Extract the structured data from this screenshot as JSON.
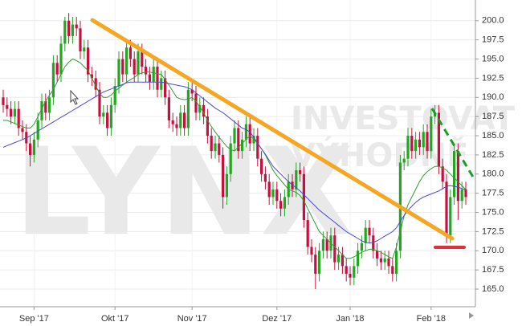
{
  "chart_data": {
    "type": "candlestick",
    "watermark": {
      "logo": "LYNX",
      "line1": "INVESTOVAT",
      "line2": "VÝHODNĚ"
    },
    "open": [
      190,
      189,
      188.5,
      187.5,
      188.5,
      186,
      185.5,
      184,
      182.5,
      184.5,
      187,
      189.5,
      188,
      190,
      194.5,
      193,
      197,
      200,
      198,
      199.5,
      199,
      196,
      196.5,
      193,
      192.5,
      191,
      187.5,
      188,
      186,
      189,
      191.5,
      195,
      193,
      196.5,
      195,
      193,
      196,
      194,
      193,
      192,
      194,
      191,
      192.5,
      190,
      187,
      186.5,
      186,
      188,
      186,
      191,
      190.5,
      188,
      189,
      187.5,
      185,
      183,
      184,
      182.5,
      177,
      180,
      184,
      186,
      183,
      184.5,
      186.5,
      184,
      185,
      182,
      180,
      179,
      177,
      178,
      176.5,
      175.5,
      177,
      179,
      178,
      180.5,
      180,
      174,
      170.5,
      169.5,
      167,
      170,
      171.5,
      170,
      172,
      168.5,
      169.5,
      168,
      167,
      166.5,
      168,
      170,
      171,
      173,
      172,
      170,
      169,
      168.5,
      169,
      168,
      167,
      170,
      181.5,
      182,
      185,
      183,
      184.5,
      183.5,
      185.5,
      183,
      187.5,
      188,
      181,
      179,
      172,
      177,
      183,
      176.5,
      178
    ],
    "high": [
      191,
      190,
      189.5,
      189.5,
      189.5,
      187,
      186.5,
      185,
      185.5,
      188,
      190.5,
      190.5,
      191,
      195.5,
      195.5,
      198,
      200.5,
      201,
      200.5,
      200.5,
      200,
      197.5,
      197.5,
      194,
      193.5,
      192,
      189,
      189,
      190,
      192.5,
      196,
      196,
      197.5,
      197.5,
      196,
      197,
      197,
      195,
      194,
      195,
      195,
      193.5,
      193.5,
      191,
      188,
      187.5,
      189,
      189,
      192,
      192,
      191.5,
      190,
      190,
      188.5,
      186,
      185,
      185,
      183.5,
      181,
      185,
      187,
      187,
      185.5,
      187.5,
      187.5,
      186,
      186,
      183,
      181,
      180,
      179,
      179,
      177.5,
      178,
      180,
      180,
      181.5,
      181.5,
      181,
      175,
      171.5,
      170.5,
      171,
      172.5,
      172.5,
      173,
      173,
      170.5,
      170.5,
      169,
      168,
      169,
      171,
      172,
      174,
      174,
      173,
      171,
      170,
      170,
      170,
      169,
      171,
      182.5,
      183,
      186,
      186,
      185.5,
      185.5,
      186.5,
      186.5,
      188.5,
      189,
      189,
      182,
      180,
      178,
      184,
      184,
      179,
      179
    ],
    "low": [
      188,
      187.5,
      186.5,
      186.5,
      185,
      184.5,
      183,
      181,
      181.5,
      183.5,
      186,
      187,
      187,
      189,
      192,
      192,
      196,
      197,
      197,
      198,
      195,
      195,
      192,
      191.5,
      190,
      186.5,
      186.5,
      185,
      185,
      188,
      190.5,
      192,
      192,
      194,
      192,
      192,
      193,
      192,
      191,
      191,
      190,
      190,
      189,
      186,
      185.5,
      185,
      185,
      185,
      185,
      189.5,
      187,
      187,
      186.5,
      184,
      182,
      182,
      181.5,
      175.5,
      176,
      179,
      183,
      182,
      182,
      183.5,
      183,
      183,
      181,
      179,
      178,
      176,
      176,
      175.5,
      174.5,
      174.5,
      176,
      177,
      177,
      179,
      173,
      169.5,
      168.5,
      165,
      166,
      169,
      169,
      169,
      167.5,
      167.5,
      167,
      166,
      165.5,
      165.5,
      167,
      169,
      170,
      171,
      169,
      168,
      167.5,
      167.5,
      167,
      166,
      166,
      169,
      180.5,
      181,
      182,
      182,
      182.5,
      182.5,
      182,
      182,
      186.5,
      180,
      178,
      171,
      171,
      176,
      174,
      175.5,
      176
    ],
    "close": [
      189,
      188.5,
      187.5,
      188.5,
      186,
      185.5,
      184,
      182.5,
      184.5,
      187,
      189.5,
      188,
      190,
      194.5,
      193,
      197,
      200,
      198,
      199.5,
      199,
      196,
      196.5,
      193,
      192.5,
      191,
      187.5,
      188,
      186,
      189,
      191.5,
      195,
      193,
      196.5,
      195,
      193,
      196,
      194,
      193,
      192,
      194,
      191,
      192.5,
      190,
      187,
      186.5,
      186,
      188,
      186,
      191,
      190.5,
      188,
      189,
      187.5,
      185,
      183,
      184,
      182.5,
      177,
      180,
      184,
      186,
      183,
      184.5,
      186.5,
      184,
      185,
      182,
      180,
      179,
      177,
      178,
      176.5,
      175.5,
      177,
      179,
      178,
      180.5,
      180,
      174,
      170.5,
      169.5,
      167,
      170,
      171.5,
      170,
      172,
      168.5,
      169.5,
      168,
      167,
      166.5,
      168,
      170,
      171,
      173,
      172,
      170,
      169,
      168.5,
      169,
      168,
      167,
      170,
      181.5,
      182,
      185,
      183,
      184.5,
      183.5,
      185.5,
      183,
      187.5,
      188,
      181,
      179,
      172,
      177,
      183,
      176.5,
      178,
      177
    ],
    "up_color": "#22a722",
    "down_color": "#c8103e",
    "series": [
      {
        "color": "#2f9e2f",
        "values": [
          187,
          187,
          186.8,
          186.6,
          186.4,
          186.2,
          186,
          186,
          186.5,
          187.5,
          188.5,
          189.5,
          190.3,
          191,
          192,
          193,
          194,
          194.6,
          195,
          194.8,
          194.5,
          194,
          193.5,
          192.5,
          191.5,
          190.5,
          190,
          190,
          190.3,
          190.8,
          191.2,
          191.6,
          192,
          192.3,
          192.6,
          193,
          193.2,
          193.3,
          193.3,
          193.2,
          193.1,
          193,
          192.3,
          191.6,
          190.8,
          190,
          189.8,
          189.7,
          189.8,
          190,
          189.5,
          188.8,
          188,
          187,
          186.2,
          185.5,
          184.8,
          184.2,
          183.6,
          183.2,
          183,
          183.5,
          184,
          184.5,
          185,
          184.6,
          184,
          183.3,
          182.5,
          181.5,
          180.5,
          179.8,
          179.2,
          178.6,
          178,
          177.8,
          177.6,
          177.2,
          176.5,
          175.5,
          174.5,
          173.5,
          172.5,
          172,
          171.5,
          171,
          170.5,
          170,
          169.5,
          169,
          169,
          169.2,
          169.5,
          169.8,
          170,
          170.2,
          170.2,
          170,
          169.8,
          169.5,
          169.2,
          169,
          170.5,
          172.5,
          174.5,
          176,
          177,
          178,
          179,
          179.8,
          180.3,
          180.7,
          181,
          181,
          180.8,
          180.5,
          180,
          179.5,
          179,
          178.5,
          178
        ]
      },
      {
        "color": "#4a4ad0",
        "values": [
          183.5,
          183.7,
          183.9,
          184.1,
          184.3,
          184.5,
          184.7,
          185,
          185.3,
          185.6,
          185.9,
          186.2,
          186.5,
          186.8,
          187.1,
          187.4,
          187.7,
          188,
          188.3,
          188.6,
          188.9,
          189.2,
          189.5,
          189.8,
          190.1,
          190.4,
          190.7,
          190.9,
          191.1,
          191.3,
          191.5,
          191.7,
          191.9,
          192,
          192,
          192,
          192,
          192,
          192,
          192,
          192,
          192,
          191.9,
          191.8,
          191.7,
          191.6,
          191.5,
          191.4,
          191.2,
          191,
          190.6,
          190.2,
          189.8,
          189.4,
          189,
          188.6,
          188.3,
          188,
          187.6,
          187.2,
          186.8,
          186.4,
          186,
          185.8,
          185.5,
          184.8,
          184,
          183.3,
          182.6,
          181.8,
          181,
          180.5,
          180,
          179.5,
          179,
          178.6,
          178.2,
          177.8,
          177.3,
          176.8,
          176.3,
          175.8,
          175.3,
          174.9,
          174.5,
          174.1,
          173.7,
          173.3,
          172.9,
          172.5,
          172.2,
          171.9,
          171.6,
          171.3,
          171.1,
          171,
          171.1,
          171.3,
          171.6,
          171.9,
          172.2,
          172.5,
          173,
          173.8,
          174.6,
          175.3,
          175.8,
          176.3,
          176.7,
          177,
          177.2,
          177.4,
          177.6,
          177.8,
          178.1,
          178.4,
          178.5,
          178.4,
          178.3,
          178.1,
          178
        ]
      }
    ],
    "ylim": [
      162.7,
      202.7
    ],
    "yticks": [
      {
        "value": 165,
        "label": "165.0"
      },
      {
        "value": 167.5,
        "label": "167.5"
      },
      {
        "value": 170,
        "label": "170.0"
      },
      {
        "value": 172.5,
        "label": "172.5"
      },
      {
        "value": 175,
        "label": "175.0"
      },
      {
        "value": 177.5,
        "label": "177.5"
      },
      {
        "value": 180,
        "label": "180.0"
      },
      {
        "value": 182.5,
        "label": "182.5"
      },
      {
        "value": 185,
        "label": "185.0"
      },
      {
        "value": 187.5,
        "label": "187.5"
      },
      {
        "value": 190,
        "label": "190.0"
      },
      {
        "value": 192.5,
        "label": "192.5"
      },
      {
        "value": 195,
        "label": "195.0"
      },
      {
        "value": 197.5,
        "label": "197.5"
      },
      {
        "value": 200,
        "label": "200.0"
      }
    ],
    "xticks": [
      {
        "value": 8,
        "label": "Sep '17"
      },
      {
        "value": 29,
        "label": "Okt '17"
      },
      {
        "value": 49,
        "label": "Nov '17"
      },
      {
        "value": 71,
        "label": "Dez '17"
      },
      {
        "value": 90,
        "label": "Jan '18"
      },
      {
        "value": 111,
        "label": "Feb '18"
      }
    ],
    "grid": true
  }
}
